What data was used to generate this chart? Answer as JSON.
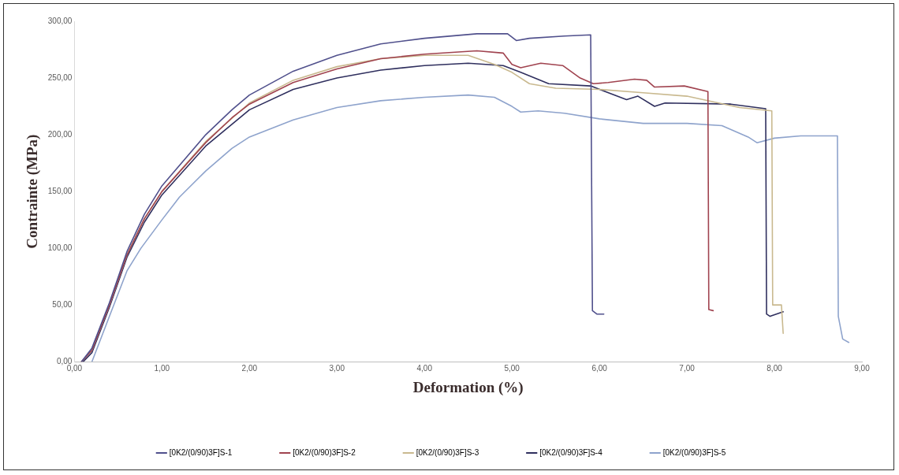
{
  "chart_data": {
    "type": "line",
    "xlabel": "Deformation (%)",
    "ylabel": "Contrainte (MPa)",
    "xlim": [
      0,
      9
    ],
    "ylim": [
      0,
      300
    ],
    "xticks": [
      {
        "value": 0,
        "label": "0,00"
      },
      {
        "value": 1,
        "label": "1,00"
      },
      {
        "value": 2,
        "label": "2,00"
      },
      {
        "value": 3,
        "label": "3,00"
      },
      {
        "value": 4,
        "label": "4,00"
      },
      {
        "value": 5,
        "label": "5,00"
      },
      {
        "value": 6,
        "label": "6,00"
      },
      {
        "value": 7,
        "label": "7,00"
      },
      {
        "value": 8,
        "label": "8,00"
      },
      {
        "value": 9,
        "label": "9,00"
      }
    ],
    "yticks": [
      {
        "value": 0,
        "label": "0,00"
      },
      {
        "value": 50,
        "label": "50,00"
      },
      {
        "value": 100,
        "label": "100,00"
      },
      {
        "value": 150,
        "label": "150,00"
      },
      {
        "value": 200,
        "label": "200,00"
      },
      {
        "value": 250,
        "label": "250,00"
      },
      {
        "value": 300,
        "label": "300,00"
      }
    ],
    "grid": false,
    "legend": "bottom",
    "marker": "none",
    "line_style": "solid",
    "series": [
      {
        "name": "[0K2/(0/90)3F]S-1",
        "color": "#50508c",
        "x": [
          0.08,
          0.2,
          0.4,
          0.6,
          0.8,
          1.0,
          1.5,
          1.8,
          2.0,
          2.5,
          3.0,
          3.5,
          4.0,
          4.6,
          4.95,
          5.05,
          5.2,
          5.6,
          5.9,
          5.92,
          5.97,
          6.05
        ],
        "values": [
          0,
          12,
          52,
          97,
          130,
          155,
          200,
          222,
          235,
          256,
          270,
          280,
          285,
          289,
          289,
          283,
          285,
          287,
          288,
          45,
          42,
          42
        ]
      },
      {
        "name": "[0K2/(0/90)3F]S-2",
        "color": "#a0434f",
        "x": [
          0.08,
          0.2,
          0.4,
          0.6,
          0.8,
          1.0,
          1.5,
          1.8,
          2.0,
          2.5,
          3.0,
          3.5,
          4.0,
          4.6,
          4.9,
          5.0,
          5.1,
          5.33,
          5.58,
          5.78,
          5.93,
          6.1,
          6.4,
          6.54,
          6.63,
          6.97,
          7.24,
          7.25,
          7.3
        ],
        "values": [
          0,
          10,
          50,
          94,
          126,
          150,
          193,
          215,
          227,
          246,
          258,
          267,
          271,
          274,
          272,
          262,
          259,
          263,
          261,
          250,
          245,
          246,
          249,
          248,
          242,
          243,
          238,
          46,
          45
        ]
      },
      {
        "name": "[0K2/(0/90)3F]S-3",
        "color": "#c9b98f",
        "x": [
          0.08,
          0.2,
          0.4,
          0.6,
          0.8,
          1.0,
          1.5,
          2.0,
          2.5,
          3.0,
          3.5,
          4.0,
          4.5,
          4.8,
          5.0,
          5.2,
          5.5,
          6.0,
          6.5,
          7.0,
          7.3,
          7.6,
          7.97,
          7.98,
          8.08,
          8.1
        ],
        "values": [
          0,
          10,
          50,
          94,
          126,
          150,
          194,
          228,
          248,
          260,
          267,
          270,
          270,
          262,
          255,
          245,
          241,
          240,
          237,
          234,
          229,
          224,
          221,
          50,
          50,
          25
        ]
      },
      {
        "name": "[0K2/(0/90)3F]S-4",
        "color": "#2f2f5e",
        "x": [
          0.1,
          0.2,
          0.4,
          0.6,
          0.8,
          1.0,
          1.5,
          2.0,
          2.5,
          3.0,
          3.5,
          4.0,
          4.5,
          4.9,
          5.1,
          5.42,
          5.9,
          6.31,
          6.44,
          6.63,
          6.75,
          7.5,
          7.9,
          7.91,
          7.95,
          8.1
        ],
        "values": [
          0,
          8,
          48,
          92,
          123,
          147,
          190,
          222,
          240,
          250,
          257,
          261,
          263,
          261,
          255,
          245,
          243,
          231,
          234,
          225,
          228,
          227,
          223,
          42,
          40,
          44
        ]
      },
      {
        "name": "[0K2/(0/90)3F]S-5",
        "color": "#8ea3cc",
        "x": [
          0.2,
          0.4,
          0.6,
          0.76,
          1.0,
          1.2,
          1.5,
          1.8,
          2.0,
          2.5,
          3.0,
          3.5,
          4.0,
          4.5,
          4.8,
          5.0,
          5.1,
          5.3,
          5.6,
          6.0,
          6.5,
          7.0,
          7.4,
          7.7,
          7.8,
          8.0,
          8.3,
          8.72,
          8.73,
          8.78,
          8.85
        ],
        "values": [
          0,
          40,
          80,
          100,
          125,
          145,
          168,
          188,
          198,
          213,
          224,
          230,
          233,
          235,
          233,
          225,
          220,
          221,
          219,
          214,
          210,
          210,
          208,
          198,
          193,
          197,
          199,
          199,
          40,
          20,
          17
        ]
      }
    ]
  }
}
